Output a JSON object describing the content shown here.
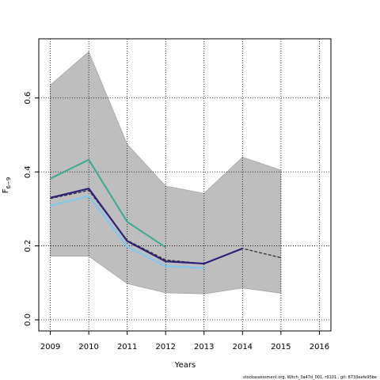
{
  "chart_data": {
    "type": "line",
    "xlabel": "Years",
    "ylabel_main": "F",
    "ylabel_sub": "6−9",
    "xlim": [
      2008.7,
      2016.3
    ],
    "ylim": [
      -0.03,
      0.76
    ],
    "x_ticks": [
      2009,
      2010,
      2011,
      2012,
      2013,
      2014,
      2015,
      2016
    ],
    "y_ticks": [
      0.0,
      0.2,
      0.4,
      0.6
    ],
    "y_tick_labels": [
      "0.0",
      "0.2",
      "0.4",
      "0.6"
    ],
    "grid": true,
    "band": {
      "x": [
        2009,
        2010,
        2011,
        2012,
        2013,
        2014,
        2015
      ],
      "upper": [
        0.635,
        0.725,
        0.475,
        0.362,
        0.342,
        0.44,
        0.405
      ],
      "lower": [
        0.172,
        0.172,
        0.098,
        0.073,
        0.07,
        0.086,
        0.072
      ],
      "color": "#bebebe"
    },
    "series": [
      {
        "x": [
          2009,
          2010,
          2011,
          2012
        ],
        "values": [
          0.382,
          0.433,
          0.265,
          0.196
        ],
        "color": "#3aa893",
        "width": 2
      },
      {
        "x": [
          2009,
          2010,
          2011,
          2012,
          2013
        ],
        "values": [
          0.308,
          0.335,
          0.198,
          0.145,
          0.14
        ],
        "color": "#87c6ea",
        "width": 2.5
      },
      {
        "x": [
          2009,
          2010,
          2011,
          2012,
          2013,
          2014,
          2015
        ],
        "values": [
          0.328,
          0.35,
          0.215,
          0.162,
          0.152,
          0.193,
          0.168
        ],
        "color": "#333333",
        "width": 1.3,
        "dashed": true
      },
      {
        "x": [
          2009,
          2010,
          2011,
          2012,
          2013,
          2014
        ],
        "values": [
          0.33,
          0.355,
          0.213,
          0.158,
          0.152,
          0.193
        ],
        "color": "#2e1f7a",
        "width": 2.2
      }
    ]
  },
  "footer": "stockassessment.org, Witch_3a47d_001, r9101 , git: 8733eefe95be"
}
